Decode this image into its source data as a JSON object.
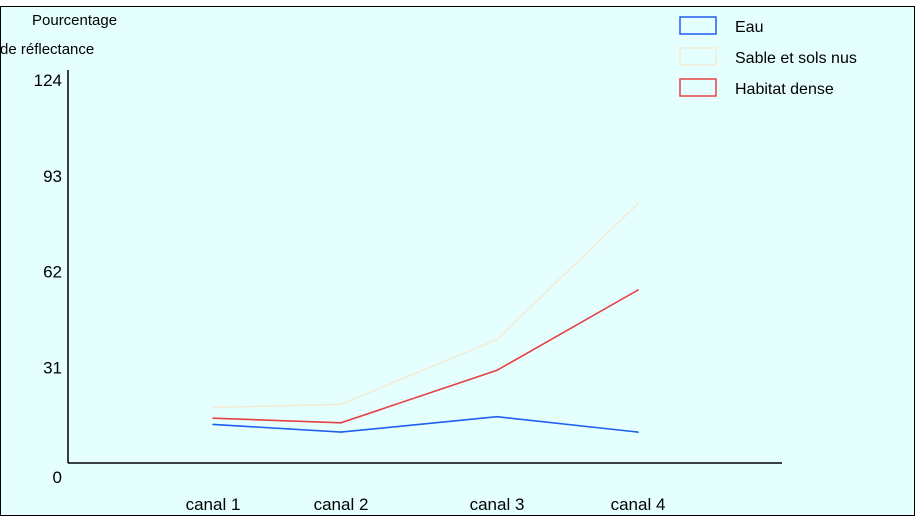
{
  "chart_data": {
    "type": "line",
    "title": "",
    "ylabel_lines": [
      "Pourcentage",
      "de réflectance"
    ],
    "xlabel": "",
    "categories": [
      "canal 1",
      "canal 2",
      "canal 3",
      "canal 4"
    ],
    "yticks": [
      "0",
      "31",
      "62",
      "93",
      "124"
    ],
    "ylim": [
      0,
      124
    ],
    "grid": false,
    "legend_position": "top-right",
    "series": [
      {
        "name": "Eau",
        "color": "#1e5ff0",
        "values": [
          12.5,
          10,
          15,
          10
        ]
      },
      {
        "name": "Sable et sols nus",
        "color": "#f2ecd6",
        "values": [
          18,
          19,
          40,
          84
        ]
      },
      {
        "name": "Habitat dense",
        "color": "#e84040",
        "values": [
          14.5,
          13,
          30,
          56
        ]
      }
    ]
  }
}
